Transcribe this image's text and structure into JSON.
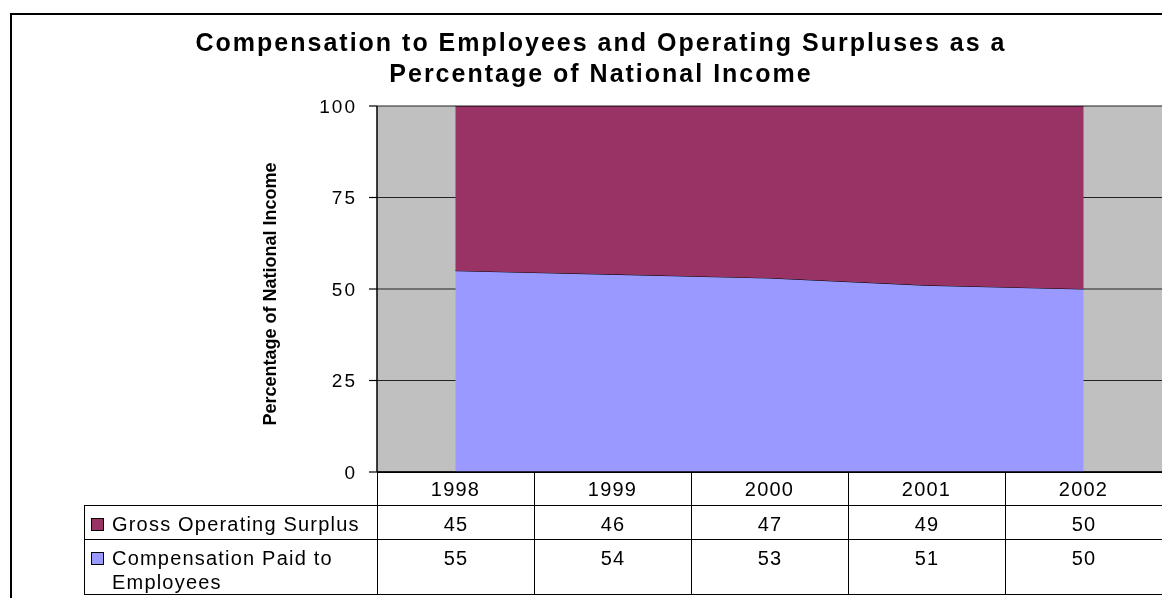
{
  "chart_data": {
    "type": "area",
    "title": "Compensation to Employees and Operating Surpluses as a Percentage of National Income",
    "ylabel": "Percentage of National Income",
    "categories": [
      "1998",
      "1999",
      "2000",
      "2001",
      "2002"
    ],
    "stacked": true,
    "series": [
      {
        "name": "Compensation Paid to Employees",
        "color": "#9999ff",
        "values": [
          55,
          54,
          53,
          51,
          50
        ]
      },
      {
        "name": "Gross Operating Surplus",
        "color": "#993366",
        "values": [
          45,
          46,
          47,
          49,
          50
        ]
      }
    ],
    "ylim": [
      0,
      100
    ],
    "yticks": [
      0,
      25,
      50,
      75,
      100
    ],
    "grid": "y",
    "legend": "bottom",
    "data_labels": true
  }
}
